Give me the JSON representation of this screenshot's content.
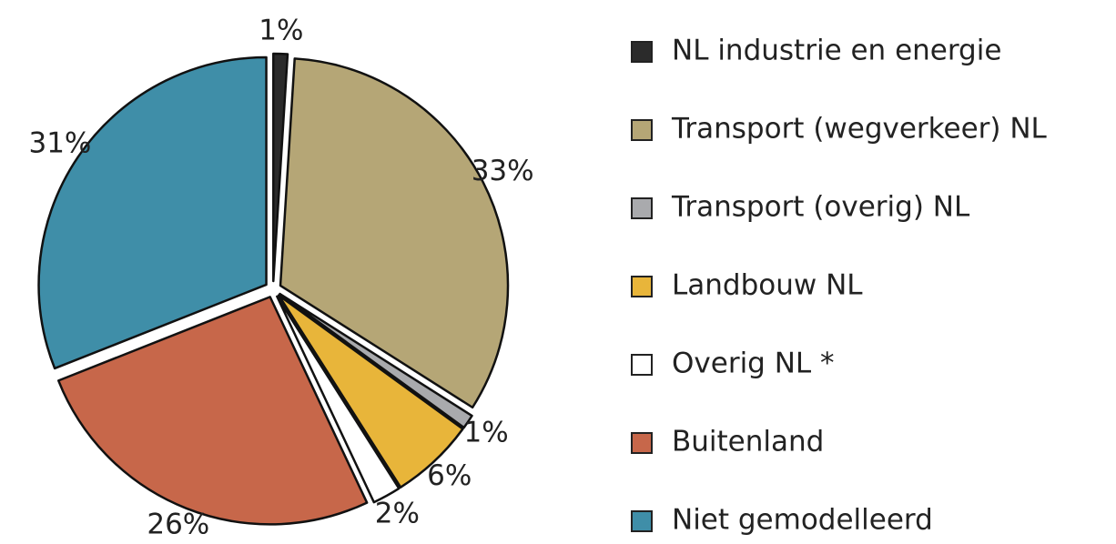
{
  "chart_data": {
    "type": "pie",
    "categories": [
      "NL industrie en energie",
      "Transport (wegverkeer) NL",
      "Transport (overig) NL",
      "Landbouw NL",
      "Overig NL *",
      "Buitenland",
      "Niet gemodelleerd"
    ],
    "values": [
      1,
      33,
      1,
      6,
      2,
      26,
      31
    ],
    "value_labels": [
      "1%",
      "33%",
      "1%",
      "6%",
      "2%",
      "26%",
      "31%"
    ],
    "colors": [
      "#2b2b2b",
      "#b5a676",
      "#a9aaad",
      "#e8b53a",
      "#ffffff",
      "#c7674a",
      "#3f8ea8"
    ],
    "legend": "right"
  }
}
